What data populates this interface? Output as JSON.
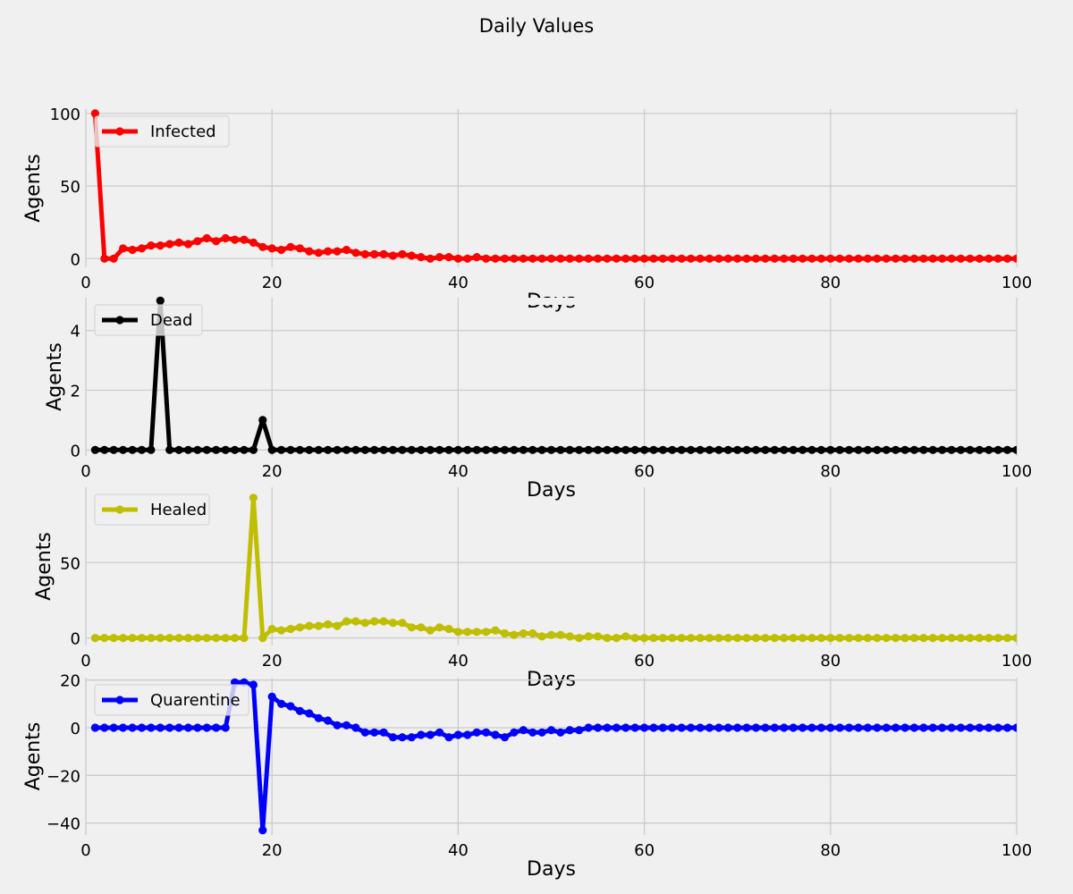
{
  "suptitle": "Daily Values",
  "colors": {
    "background": "#f0f0f0",
    "grid": "#cbcbcb"
  },
  "chart_data": [
    {
      "type": "line",
      "name": "Infected",
      "color": "#ff0000",
      "xlabel": "Days",
      "ylabel": "Agents",
      "xlim": [
        0,
        100
      ],
      "ylim": [
        -6,
        103
      ],
      "xticks": [
        0,
        20,
        40,
        60,
        80,
        100
      ],
      "yticks": [
        0,
        50,
        100
      ],
      "legend": "upper-left",
      "grid": true,
      "x_start": 1,
      "values": [
        100,
        0,
        0,
        7,
        6,
        7,
        9,
        9,
        10,
        11,
        10,
        12,
        14,
        12,
        14,
        13,
        13,
        11,
        8,
        7,
        6,
        8,
        7,
        5,
        4,
        5,
        5,
        6,
        4,
        3,
        3,
        3,
        2,
        3,
        2,
        1,
        0,
        1,
        1,
        0,
        0,
        1,
        0,
        0,
        0,
        0,
        0,
        0,
        0,
        0,
        0,
        0,
        0,
        0,
        0,
        0,
        0,
        0,
        0,
        0,
        0,
        0,
        0,
        0,
        0,
        0,
        0,
        0,
        0,
        0,
        0,
        0,
        0,
        0,
        0,
        0,
        0,
        0,
        0,
        0,
        0,
        0,
        0,
        0,
        0,
        0,
        0,
        0,
        0,
        0,
        0,
        0,
        0,
        0,
        0,
        0,
        0,
        0,
        0,
        0
      ]
    },
    {
      "type": "line",
      "name": "Dead",
      "color": "#000000",
      "xlabel": "Days",
      "ylabel": "Agents",
      "xlim": [
        0,
        100
      ],
      "ylim": [
        -0.2,
        5.1
      ],
      "xticks": [
        0,
        20,
        40,
        60,
        80,
        100
      ],
      "yticks": [
        0,
        2,
        4
      ],
      "legend": "upper-left",
      "grid": true,
      "x_start": 1,
      "values": [
        0,
        0,
        0,
        0,
        0,
        0,
        0,
        5,
        0,
        0,
        0,
        0,
        0,
        0,
        0,
        0,
        0,
        0,
        1,
        0,
        0,
        0,
        0,
        0,
        0,
        0,
        0,
        0,
        0,
        0,
        0,
        0,
        0,
        0,
        0,
        0,
        0,
        0,
        0,
        0,
        0,
        0,
        0,
        0,
        0,
        0,
        0,
        0,
        0,
        0,
        0,
        0,
        0,
        0,
        0,
        0,
        0,
        0,
        0,
        0,
        0,
        0,
        0,
        0,
        0,
        0,
        0,
        0,
        0,
        0,
        0,
        0,
        0,
        0,
        0,
        0,
        0,
        0,
        0,
        0,
        0,
        0,
        0,
        0,
        0,
        0,
        0,
        0,
        0,
        0,
        0,
        0,
        0,
        0,
        0,
        0,
        0,
        0,
        0,
        0
      ]
    },
    {
      "type": "line",
      "name": "Healed",
      "color": "#bfbf00",
      "xlabel": "Days",
      "ylabel": "Agents",
      "xlim": [
        0,
        100
      ],
      "ylim": [
        -5,
        100
      ],
      "xticks": [
        0,
        20,
        40,
        60,
        80,
        100
      ],
      "yticks": [
        0,
        50
      ],
      "legend": "upper-left",
      "grid": true,
      "x_start": 1,
      "values": [
        0,
        0,
        0,
        0,
        0,
        0,
        0,
        0,
        0,
        0,
        0,
        0,
        0,
        0,
        0,
        0,
        0,
        93,
        0,
        6,
        5,
        6,
        7,
        8,
        8,
        9,
        8,
        11,
        11,
        10,
        11,
        11,
        10,
        10,
        7,
        7,
        5,
        7,
        6,
        4,
        4,
        4,
        4,
        5,
        3,
        2,
        3,
        3,
        1,
        2,
        2,
        1,
        0,
        1,
        1,
        0,
        0,
        1,
        0,
        0,
        0,
        0,
        0,
        0,
        0,
        0,
        0,
        0,
        0,
        0,
        0,
        0,
        0,
        0,
        0,
        0,
        0,
        0,
        0,
        0,
        0,
        0,
        0,
        0,
        0,
        0,
        0,
        0,
        0,
        0,
        0,
        0,
        0,
        0,
        0,
        0,
        0,
        0,
        0,
        0
      ]
    },
    {
      "type": "line",
      "name": "Quarentine",
      "color": "#0000ff",
      "xlabel": "Days",
      "ylabel": "Agents",
      "xlim": [
        0,
        100
      ],
      "ylim": [
        -45,
        21
      ],
      "xticks": [
        0,
        20,
        40,
        60,
        80,
        100
      ],
      "yticks": [
        -40,
        -20,
        0,
        20
      ],
      "legend": "upper-left",
      "grid": true,
      "x_start": 1,
      "values": [
        0,
        0,
        0,
        0,
        0,
        0,
        0,
        0,
        0,
        0,
        0,
        0,
        0,
        0,
        0,
        19,
        19,
        18,
        -43,
        13,
        10,
        9,
        7,
        6,
        4,
        3,
        1,
        1,
        0,
        -2,
        -2,
        -2,
        -4,
        -4,
        -4,
        -3,
        -3,
        -2,
        -4,
        -3,
        -3,
        -2,
        -2,
        -3,
        -4,
        -2,
        -1,
        -2,
        -2,
        -1,
        -2,
        -1,
        -1,
        0,
        0,
        0,
        0,
        0,
        0,
        0,
        0,
        0,
        0,
        0,
        0,
        0,
        0,
        0,
        0,
        0,
        0,
        0,
        0,
        0,
        0,
        0,
        0,
        0,
        0,
        0,
        0,
        0,
        0,
        0,
        0,
        0,
        0,
        0,
        0,
        0,
        0,
        0,
        0,
        0,
        0,
        0,
        0,
        0,
        0,
        0
      ]
    }
  ]
}
